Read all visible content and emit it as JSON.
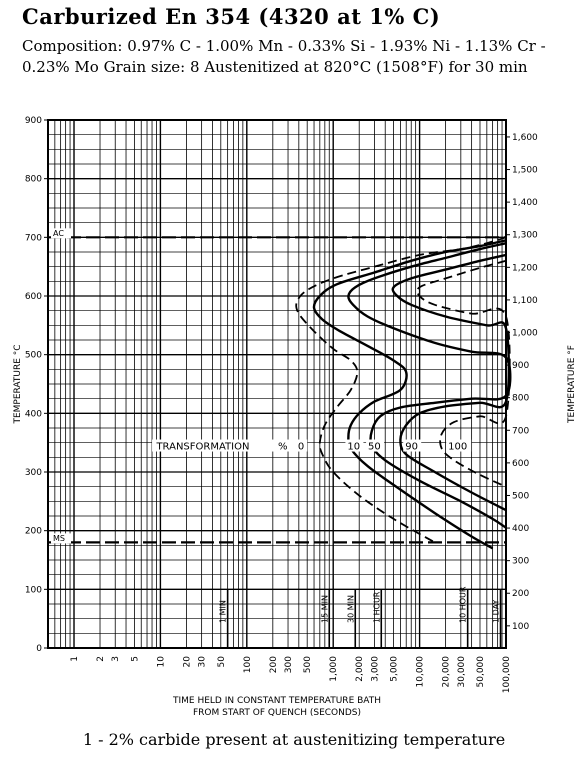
{
  "title": "Carburized En 354 (4320 at 1% C)",
  "subtitle": "Composition: 0.97% C - 1.00% Mn - 0.33% Si - 1.93% Ni - 1.13% Cr - 0.23% Mo Grain size: 8 Austenitized at 820°C (1508°F) for 30 min",
  "footnote": "1 - 2% carbide present at austenitizing temperature",
  "chart_data": {
    "type": "line",
    "xlabel": "TIME HELD IN CONSTANT TEMPERATURE BATH",
    "xlabel2": "FROM START OF QUENCH (SECONDS)",
    "ylabel": "TEMPERATURE °C",
    "ylabel_right": "TEMPERATURE °F",
    "x_scale": "log",
    "xlim": [
      0.5,
      100000
    ],
    "ylim": [
      0,
      900
    ],
    "x_ticks": [
      {
        "value": 1,
        "label": "1"
      },
      {
        "value": 2,
        "label": "2"
      },
      {
        "value": 3,
        "label": "3"
      },
      {
        "value": 5,
        "label": "5"
      },
      {
        "value": 10,
        "label": "10"
      },
      {
        "value": 20,
        "label": "20"
      },
      {
        "value": 30,
        "label": "30"
      },
      {
        "value": 50,
        "label": "50"
      },
      {
        "value": 100,
        "label": "100"
      },
      {
        "value": 200,
        "label": "200"
      },
      {
        "value": 300,
        "label": "300"
      },
      {
        "value": 500,
        "label": "500"
      },
      {
        "value": 1000,
        "label": "1,000"
      },
      {
        "value": 2000,
        "label": "2,000"
      },
      {
        "value": 3000,
        "label": "3,000"
      },
      {
        "value": 5000,
        "label": "5,000"
      },
      {
        "value": 10000,
        "label": "10,000"
      },
      {
        "value": 20000,
        "label": "20,000"
      },
      {
        "value": 30000,
        "label": "30,000"
      },
      {
        "value": 50000,
        "label": "50,000"
      },
      {
        "value": 100000,
        "label": "100,000"
      }
    ],
    "y_ticks_c": [
      {
        "value": 0,
        "label": "0"
      },
      {
        "value": 100,
        "label": "100"
      },
      {
        "value": 200,
        "label": "200"
      },
      {
        "value": 300,
        "label": "300"
      },
      {
        "value": 400,
        "label": "400"
      },
      {
        "value": 500,
        "label": "500"
      },
      {
        "value": 600,
        "label": "600"
      },
      {
        "value": 700,
        "label": "700"
      },
      {
        "value": 800,
        "label": "800"
      },
      {
        "value": 900,
        "label": "900"
      }
    ],
    "y_ticks_f": [
      {
        "value": 100,
        "label": "100"
      },
      {
        "value": 200,
        "label": "200"
      },
      {
        "value": 300,
        "label": "300"
      },
      {
        "value": 400,
        "label": "400"
      },
      {
        "value": 500,
        "label": "500"
      },
      {
        "value": 600,
        "label": "600"
      },
      {
        "value": 700,
        "label": "700"
      },
      {
        "value": 800,
        "label": "800"
      },
      {
        "value": 900,
        "label": "900"
      },
      {
        "value": 1000,
        "label": "1,000"
      },
      {
        "value": 1100,
        "label": "1,100"
      },
      {
        "value": 1200,
        "label": "1,200"
      },
      {
        "value": 1300,
        "label": "1,300"
      },
      {
        "value": 1400,
        "label": "1,400"
      },
      {
        "value": 1500,
        "label": "1,500"
      },
      {
        "value": 1600,
        "label": "1,600"
      }
    ],
    "time_marks": [
      {
        "value": 60,
        "label": "1 MIN"
      },
      {
        "value": 900,
        "label": "15 MIN"
      },
      {
        "value": 1800,
        "label": "30 MIN"
      },
      {
        "value": 3600,
        "label": "1 HOUR"
      },
      {
        "value": 36000,
        "label": "10 HOUR"
      },
      {
        "value": 86400,
        "label": "1 DAY"
      }
    ],
    "reference_lines": [
      {
        "label": "AC",
        "temperature": 700
      },
      {
        "label": "MS",
        "temperature": 180
      }
    ],
    "annotation": {
      "label": "TRANSFORMATION",
      "unit": "%",
      "temperature": 340
    },
    "series": [
      {
        "name": "0",
        "style": "dashed",
        "label_pos": {
          "x": 400,
          "y": 340
        },
        "points": [
          [
            100000,
            700
          ],
          [
            60000,
            690
          ],
          [
            30000,
            680
          ],
          [
            10000,
            670
          ],
          [
            3000,
            650
          ],
          [
            1000,
            630
          ],
          [
            500,
            610
          ],
          [
            380,
            590
          ],
          [
            400,
            570
          ],
          [
            600,
            540
          ],
          [
            1000,
            510
          ],
          [
            1600,
            490
          ],
          [
            1900,
            470
          ],
          [
            1600,
            440
          ],
          [
            1100,
            410
          ],
          [
            800,
            380
          ],
          [
            700,
            350
          ],
          [
            750,
            330
          ],
          [
            1000,
            300
          ],
          [
            2000,
            260
          ],
          [
            5000,
            220
          ],
          [
            15000,
            180
          ]
        ]
      },
      {
        "name": "10",
        "style": "solid",
        "label_pos": {
          "x": 1500,
          "y": 340
        },
        "points": [
          [
            100000,
            695
          ],
          [
            50000,
            685
          ],
          [
            20000,
            675
          ],
          [
            8000,
            660
          ],
          [
            3000,
            640
          ],
          [
            1100,
            620
          ],
          [
            700,
            600
          ],
          [
            600,
            580
          ],
          [
            750,
            560
          ],
          [
            1200,
            540
          ],
          [
            2500,
            515
          ],
          [
            5000,
            490
          ],
          [
            7000,
            470
          ],
          [
            6000,
            440
          ],
          [
            3000,
            420
          ],
          [
            2000,
            400
          ],
          [
            1600,
            380
          ],
          [
            1500,
            360
          ],
          [
            1600,
            340
          ],
          [
            2500,
            310
          ],
          [
            6000,
            270
          ],
          [
            15000,
            230
          ],
          [
            40000,
            190
          ],
          [
            70000,
            170
          ]
        ]
      },
      {
        "name": "50",
        "style": "solid",
        "label_pos": {
          "x": 2600,
          "y": 340
        },
        "points": [
          [
            100000,
            690
          ],
          [
            50000,
            680
          ],
          [
            20000,
            665
          ],
          [
            8000,
            650
          ],
          [
            3000,
            630
          ],
          [
            1800,
            615
          ],
          [
            1500,
            600
          ],
          [
            1700,
            585
          ],
          [
            2500,
            565
          ],
          [
            5000,
            545
          ],
          [
            15000,
            520
          ],
          [
            40000,
            505
          ],
          [
            100000,
            495
          ],
          [
            100000,
            430
          ],
          [
            40000,
            425
          ],
          [
            15000,
            418
          ],
          [
            6000,
            410
          ],
          [
            3500,
            395
          ],
          [
            2800,
            370
          ],
          [
            2800,
            345
          ],
          [
            4000,
            320
          ],
          [
            10000,
            285
          ],
          [
            30000,
            250
          ],
          [
            70000,
            220
          ],
          [
            100000,
            205
          ]
        ]
      },
      {
        "name": "90",
        "style": "solid",
        "label_pos": {
          "x": 7000,
          "y": 340
        },
        "points": [
          [
            100000,
            670
          ],
          [
            50000,
            660
          ],
          [
            20000,
            645
          ],
          [
            8000,
            630
          ],
          [
            5000,
            615
          ],
          [
            5500,
            600
          ],
          [
            8000,
            585
          ],
          [
            20000,
            565
          ],
          [
            60000,
            550
          ],
          [
            100000,
            545
          ],
          [
            100000,
            420
          ],
          [
            50000,
            418
          ],
          [
            20000,
            412
          ],
          [
            10000,
            400
          ],
          [
            7000,
            380
          ],
          [
            6000,
            355
          ],
          [
            7000,
            330
          ],
          [
            15000,
            300
          ],
          [
            40000,
            265
          ],
          [
            100000,
            235
          ]
        ]
      },
      {
        "name": "100",
        "style": "dashed",
        "label_pos": {
          "x": 22000,
          "y": 340
        },
        "points": [
          [
            100000,
            660
          ],
          [
            50000,
            648
          ],
          [
            20000,
            630
          ],
          [
            10000,
            615
          ],
          [
            10000,
            600
          ],
          [
            15000,
            585
          ],
          [
            40000,
            570
          ],
          [
            100000,
            565
          ],
          [
            100000,
            395
          ],
          [
            50000,
            395
          ],
          [
            25000,
            385
          ],
          [
            18000,
            365
          ],
          [
            18000,
            340
          ],
          [
            25000,
            320
          ],
          [
            50000,
            295
          ],
          [
            100000,
            275
          ]
        ]
      }
    ]
  }
}
